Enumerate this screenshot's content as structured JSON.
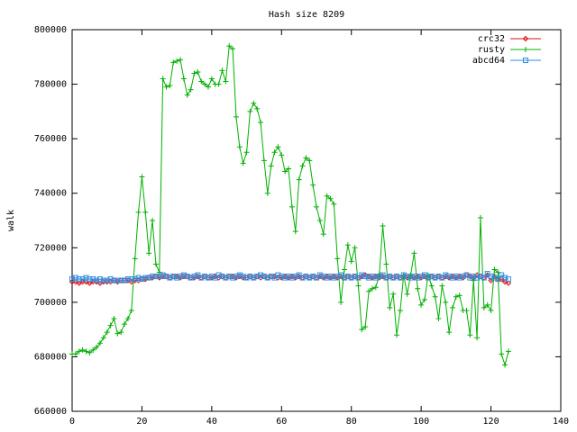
{
  "chart_data": {
    "type": "line",
    "title": "Hash size 8209",
    "ylabel": "walk",
    "x": [
      0,
      1,
      2,
      3,
      4,
      5,
      6,
      7,
      8,
      9,
      10,
      11,
      12,
      13,
      14,
      15,
      16,
      17,
      18,
      19,
      20,
      21,
      22,
      23,
      24,
      25,
      26,
      27,
      28,
      29,
      30,
      31,
      32,
      33,
      34,
      35,
      36,
      37,
      38,
      39,
      40,
      41,
      42,
      43,
      44,
      45,
      46,
      47,
      48,
      49,
      50,
      51,
      52,
      53,
      54,
      55,
      56,
      57,
      58,
      59,
      60,
      61,
      62,
      63,
      64,
      65,
      66,
      67,
      68,
      69,
      70,
      71,
      72,
      73,
      74,
      75,
      76,
      77,
      78,
      79,
      80,
      81,
      82,
      83,
      84,
      85,
      86,
      87,
      88,
      89,
      90,
      91,
      92,
      93,
      94,
      95,
      96,
      97,
      98,
      99,
      100,
      101,
      102,
      103,
      104,
      105,
      106,
      107,
      108,
      109,
      110,
      111,
      112,
      113,
      114,
      115,
      116,
      117,
      118,
      119,
      120,
      121,
      122,
      123,
      124,
      125
    ],
    "series": [
      {
        "name": "crc32",
        "color": "#e01010",
        "marker": "diamond",
        "values": [
          707500,
          707500,
          707000,
          707500,
          707500,
          707000,
          707500,
          707500,
          707000,
          707500,
          707500,
          707500,
          708000,
          707500,
          708000,
          708000,
          708000,
          707500,
          708000,
          708000,
          708500,
          708500,
          709000,
          709000,
          709500,
          709000,
          709500,
          709500,
          709000,
          709500,
          709500,
          709000,
          709500,
          709500,
          709000,
          709000,
          709500,
          709000,
          709500,
          709000,
          709000,
          709500,
          709000,
          709500,
          709000,
          709500,
          709500,
          709000,
          709500,
          709000,
          709000,
          709500,
          709000,
          709500,
          709000,
          709500,
          709000,
          709500,
          709500,
          709000,
          709000,
          709500,
          709000,
          709500,
          709000,
          709500,
          709000,
          709500,
          709000,
          709500,
          709000,
          709500,
          709000,
          709500,
          709000,
          709500,
          709000,
          709500,
          709000,
          709500,
          709000,
          709500,
          709000,
          709500,
          710000,
          709500,
          709000,
          709500,
          709000,
          709500,
          709000,
          709500,
          709000,
          709500,
          709000,
          709500,
          709000,
          709500,
          709000,
          709500,
          709000,
          709500,
          709000,
          709500,
          709000,
          709500,
          709000,
          709500,
          709000,
          709500,
          709000,
          709500,
          709000,
          710000,
          709500,
          709000,
          710000,
          709500,
          709000,
          710000,
          708000,
          709500,
          708500,
          708500,
          707500,
          707000
        ]
      },
      {
        "name": "rusty",
        "color": "#00b000",
        "marker": "plus",
        "values": [
          681000,
          681000,
          682000,
          682500,
          682000,
          681500,
          682500,
          683500,
          685000,
          687000,
          689000,
          691500,
          694000,
          688500,
          689000,
          692000,
          694000,
          697000,
          716000,
          733000,
          746000,
          733000,
          718000,
          730000,
          714000,
          711000,
          782000,
          779000,
          779500,
          788000,
          788500,
          789000,
          782000,
          776000,
          778000,
          784000,
          784500,
          781000,
          780000,
          779000,
          782000,
          780000,
          780000,
          785000,
          781000,
          794000,
          793000,
          768000,
          757000,
          751000,
          755000,
          770000,
          773000,
          771000,
          766000,
          752000,
          740000,
          750000,
          755000,
          757000,
          754000,
          748000,
          749000,
          735000,
          726000,
          745000,
          750000,
          753000,
          752000,
          743000,
          735000,
          730000,
          725000,
          739000,
          738000,
          736000,
          716000,
          700000,
          712000,
          721000,
          715000,
          720000,
          706000,
          690000,
          691000,
          704000,
          705000,
          705500,
          710000,
          728000,
          714000,
          698000,
          703000,
          688000,
          697000,
          710000,
          703000,
          710000,
          718000,
          705000,
          699000,
          701000,
          710000,
          706000,
          702000,
          694000,
          706000,
          700000,
          689000,
          698000,
          702000,
          702500,
          697000,
          697000,
          688000,
          708000,
          687000,
          731000,
          698000,
          699000,
          697000,
          712000,
          711000,
          681000,
          677000,
          682000
        ]
      },
      {
        "name": "abcd64",
        "color": "#2f8fe0",
        "marker": "square",
        "values": [
          708500,
          709000,
          708500,
          708500,
          709000,
          708500,
          708500,
          708000,
          708500,
          708000,
          708000,
          708500,
          708000,
          708000,
          708000,
          708000,
          708500,
          708500,
          708500,
          709000,
          708500,
          709000,
          709000,
          709500,
          709500,
          709500,
          710000,
          709500,
          709000,
          709500,
          709000,
          709500,
          710000,
          709500,
          709000,
          709500,
          710000,
          709000,
          709500,
          709000,
          709500,
          709000,
          710000,
          709500,
          709000,
          709500,
          709000,
          709500,
          710000,
          709500,
          709000,
          709500,
          709000,
          709500,
          710000,
          709500,
          709000,
          709500,
          709000,
          710000,
          709500,
          709000,
          709500,
          709000,
          709500,
          710000,
          709000,
          709500,
          709000,
          709500,
          709000,
          710000,
          709500,
          709000,
          709500,
          709000,
          709500,
          710000,
          709000,
          709500,
          709000,
          709500,
          709000,
          710000,
          709500,
          709000,
          709500,
          709000,
          709500,
          710000,
          709000,
          709500,
          709000,
          709500,
          709000,
          710000,
          709500,
          709000,
          709500,
          709000,
          709500,
          710000,
          709000,
          709500,
          709000,
          709500,
          709000,
          710000,
          709500,
          709000,
          709500,
          709000,
          709500,
          710000,
          709000,
          709500,
          709000,
          709500,
          709000,
          710500,
          709500,
          709000,
          708500,
          710000,
          709000,
          708500
        ]
      }
    ],
    "xlim": [
      0,
      140
    ],
    "xticks": [
      0,
      20,
      40,
      60,
      80,
      100,
      120,
      140
    ],
    "ylim": [
      660000,
      800000
    ],
    "yticks": [
      660000,
      680000,
      700000,
      720000,
      740000,
      760000,
      780000,
      800000
    ],
    "grid": false,
    "legend": "top-right"
  }
}
